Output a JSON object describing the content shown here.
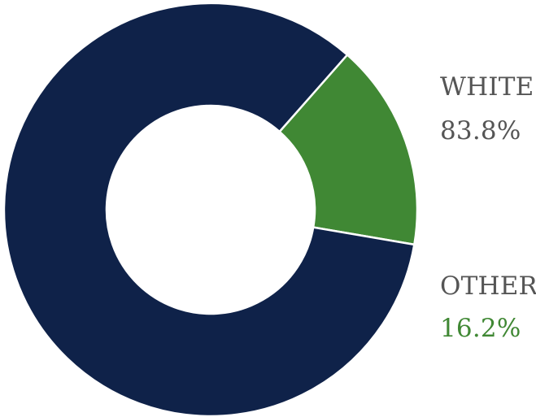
{
  "chart_data": {
    "type": "pie",
    "style": "donut",
    "title": "",
    "slices": [
      {
        "label": "WHITE",
        "value": 83.8,
        "display": "83.8%",
        "color": "#0f2249"
      },
      {
        "label": "OTHER",
        "value": 16.2,
        "display": "16.2%",
        "color": "#408834"
      }
    ],
    "label_colors": {
      "name": "#555555",
      "white_value": "#555555",
      "other_value": "#408834"
    }
  }
}
